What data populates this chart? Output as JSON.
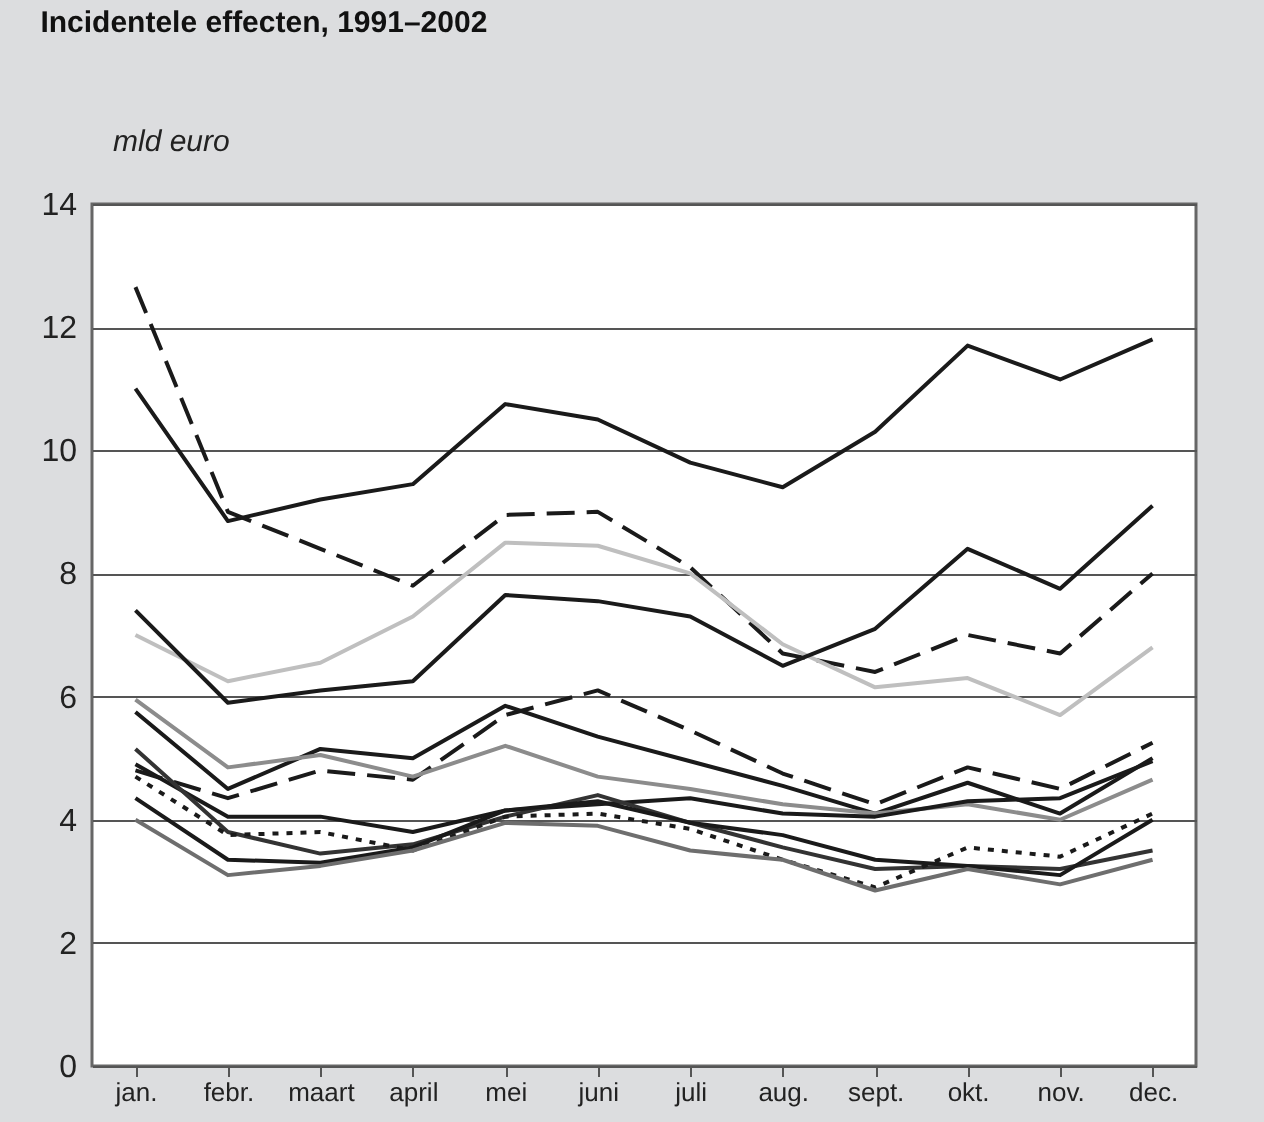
{
  "chart_data": {
    "type": "line",
    "title": "Incidentele effecten, 1991–2002",
    "ylabel": "mld euro",
    "categories": [
      "jan.",
      "febr.",
      "maart",
      "april",
      "mei",
      "juni",
      "juli",
      "aug.",
      "sept.",
      "okt.",
      "nov.",
      "dec."
    ],
    "ylim": [
      0,
      14
    ],
    "yticks": [
      0,
      2,
      4,
      6,
      8,
      10,
      12,
      14
    ],
    "grid": "y",
    "marker": "none",
    "series": [
      {
        "color": "#1a1a1a",
        "line_style": "solid",
        "values": [
          11.0,
          8.85,
          9.2,
          9.45,
          10.75,
          10.5,
          9.8,
          9.4,
          10.3,
          11.7,
          11.15,
          11.8
        ]
      },
      {
        "color": "#1a1a1a",
        "line_style": "dashed",
        "values": [
          12.65,
          9.0,
          8.4,
          7.8,
          8.95,
          9.0,
          8.1,
          6.7,
          6.4,
          7.0,
          6.7,
          8.0
        ]
      },
      {
        "color": "#bfbfbf",
        "line_style": "solid",
        "values": [
          7.0,
          6.25,
          6.55,
          7.3,
          8.5,
          8.45,
          8.0,
          6.85,
          6.15,
          6.3,
          5.7,
          6.8
        ]
      },
      {
        "color": "#1a1a1a",
        "line_style": "solid",
        "values": [
          7.4,
          5.9,
          6.1,
          6.25,
          7.65,
          7.55,
          7.3,
          6.5,
          7.1,
          8.4,
          7.75,
          9.1
        ]
      },
      {
        "color": "#1a1a1a",
        "line_style": "dashed",
        "values": [
          4.8,
          4.35,
          4.8,
          4.65,
          5.7,
          6.1,
          5.45,
          4.75,
          4.25,
          4.85,
          4.5,
          5.25
        ]
      },
      {
        "color": "#1a1a1a",
        "line_style": "solid",
        "values": [
          5.75,
          4.5,
          5.15,
          5.0,
          5.85,
          5.35,
          4.95,
          4.55,
          4.1,
          4.6,
          4.1,
          5.0
        ]
      },
      {
        "color": "#8c8c8c",
        "line_style": "solid",
        "values": [
          5.95,
          4.85,
          5.05,
          4.7,
          5.2,
          4.7,
          4.5,
          4.25,
          4.1,
          4.25,
          4.0,
          4.65
        ]
      },
      {
        "color": "#1a1a1a",
        "line_style": "solid",
        "values": [
          4.9,
          4.05,
          4.05,
          3.8,
          4.15,
          4.25,
          4.35,
          4.1,
          4.05,
          4.3,
          4.35,
          4.95
        ]
      },
      {
        "color": "#333333",
        "line_style": "solid",
        "values": [
          5.15,
          3.8,
          3.45,
          3.6,
          4.05,
          4.4,
          3.95,
          3.55,
          3.2,
          3.25,
          3.2,
          3.5
        ]
      },
      {
        "color": "#1a1a1a",
        "line_style": "dotted",
        "values": [
          4.7,
          3.75,
          3.8,
          3.5,
          4.05,
          4.1,
          3.85,
          3.35,
          2.9,
          3.55,
          3.4,
          4.1
        ]
      },
      {
        "color": "#1a1a1a",
        "line_style": "solid",
        "values": [
          4.35,
          3.35,
          3.3,
          3.55,
          4.15,
          4.3,
          3.95,
          3.75,
          3.35,
          3.25,
          3.1,
          4.0
        ]
      },
      {
        "color": "#6e6e6e",
        "line_style": "solid",
        "values": [
          4.0,
          3.1,
          3.25,
          3.5,
          3.95,
          3.9,
          3.5,
          3.35,
          2.85,
          3.2,
          2.95,
          3.35
        ]
      }
    ]
  }
}
